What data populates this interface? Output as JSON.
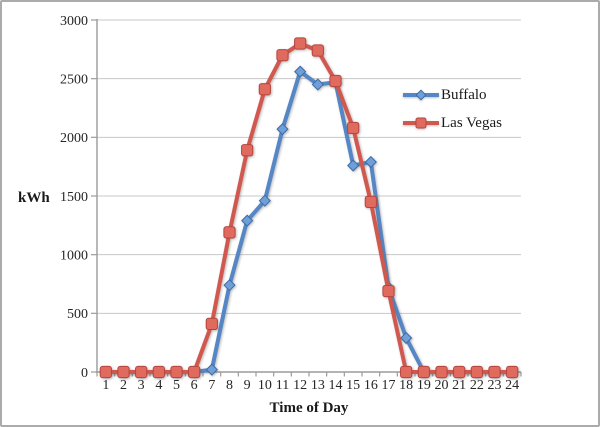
{
  "window": {
    "background": "#ffffff",
    "border_color": "#ababab"
  },
  "chart_data": {
    "type": "line",
    "title": "",
    "xlabel": "Time of Day",
    "ylabel": "kWh",
    "categories": [
      1,
      2,
      3,
      4,
      5,
      6,
      7,
      8,
      9,
      10,
      11,
      12,
      13,
      14,
      15,
      16,
      17,
      18,
      19,
      20,
      21,
      22,
      23,
      24
    ],
    "series": [
      {
        "name": "Buffalo",
        "marker": "diamond",
        "line_color": "#5587C6",
        "marker_fill": "#6F9FD8",
        "marker_stroke": "#3C6CA5",
        "values": [
          0,
          0,
          0,
          0,
          0,
          0,
          20,
          740,
          1290,
          1460,
          2070,
          2560,
          2450,
          2470,
          1760,
          1790,
          720,
          290,
          0,
          0,
          0,
          0,
          0,
          0
        ]
      },
      {
        "name": "Las Vegas",
        "marker": "square",
        "line_color": "#D1584F",
        "marker_fill": "#E16A5F",
        "marker_stroke": "#B4453D",
        "values": [
          0,
          0,
          0,
          0,
          0,
          0,
          410,
          1190,
          1890,
          2410,
          2700,
          2800,
          2740,
          2480,
          2080,
          1450,
          690,
          0,
          0,
          0,
          0,
          0,
          0,
          0
        ]
      }
    ],
    "ylim": [
      0,
      3000
    ],
    "y_ticks": [
      0,
      500,
      1000,
      1500,
      2000,
      2500,
      3000
    ],
    "grid": true,
    "legend_position": "right-middle",
    "axis_color": "#9b9b9b",
    "grid_color": "#c8c8c8",
    "text_color": "#262626"
  }
}
